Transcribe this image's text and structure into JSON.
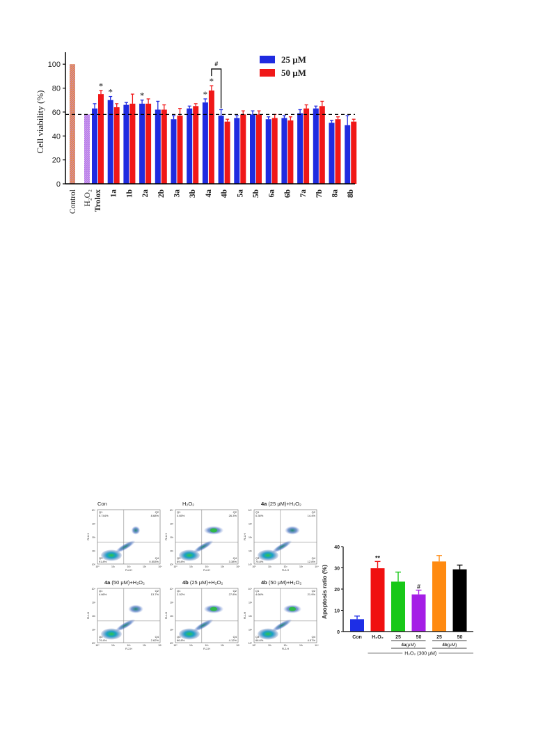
{
  "chart_data": [
    {
      "type": "bar",
      "ylabel": "Cell viability (%)",
      "ylim": [
        0,
        110
      ],
      "yticks": [
        0,
        20,
        40,
        60,
        80,
        100
      ],
      "reference_line": 58,
      "legend_position": "top-right",
      "single_bars": [
        {
          "label": "Control",
          "value": 100,
          "color": "#f08a2a",
          "pattern": "#c08ad8"
        },
        {
          "label": "H₂O₂",
          "value": 58,
          "color": "#b070e8",
          "pattern": "#d8b0f0"
        }
      ],
      "categories": [
        "Trolox",
        "1a",
        "1b",
        "2a",
        "2b",
        "3a",
        "3b",
        "4a",
        "4b",
        "5a",
        "5b",
        "6a",
        "6b",
        "7a",
        "7b",
        "8a",
        "8b"
      ],
      "series": [
        {
          "name": "25 μM",
          "color": "#1f2be0",
          "values": [
            63,
            70,
            66,
            67,
            62,
            54,
            63,
            68,
            57,
            55,
            58,
            54,
            55,
            59,
            63,
            51,
            49
          ],
          "errors": [
            4,
            3,
            2,
            3,
            7,
            3,
            2,
            3,
            5,
            2,
            3,
            2,
            2,
            3,
            2,
            2,
            8
          ]
        },
        {
          "name": "50 μM",
          "color": "#f01818",
          "values": [
            75,
            64,
            67,
            67,
            62,
            57,
            65,
            78,
            52,
            58,
            58,
            55,
            53,
            63,
            65,
            54,
            52
          ],
          "errors": [
            3,
            3,
            8,
            4,
            4,
            6,
            2,
            4,
            2,
            3,
            3,
            3,
            3,
            3,
            4,
            2,
            2
          ]
        }
      ],
      "significance_markers": [
        {
          "category": "Trolox",
          "series": 1,
          "text": "*"
        },
        {
          "category": "1a",
          "series": 0,
          "text": "*"
        },
        {
          "category": "2a",
          "series": 0,
          "text": "*"
        },
        {
          "category": "4a",
          "series": 0,
          "text": "*"
        },
        {
          "category": "4a",
          "series": 1,
          "text": "*"
        }
      ],
      "bracket": {
        "from": "4a",
        "to": "4b",
        "text": "#"
      }
    },
    {
      "type": "flow_cytometry",
      "panels": [
        {
          "title_bold": "",
          "title": "Con",
          "q1": "0.744%",
          "q2": "8.68%",
          "q3": "91.8%",
          "q4": "0.553%"
        },
        {
          "title_bold": "",
          "title": "H₂O₂",
          "q1": "0.65%",
          "q2": "26.3%",
          "q3": "69.8%",
          "q4": "3.38%"
        },
        {
          "title_bold": "4a",
          "title": " (25 μM)+H₂O₂",
          "q1": "0.30%",
          "q2": "14.4%",
          "q3": "75.8%",
          "q4": "12.8%"
        },
        {
          "title_bold": "4a",
          "title": " (50 μM)+H₂O₂",
          "q1": "4.66%",
          "q2": "13.7%",
          "q3": "79.4%",
          "q4": "2.62%"
        },
        {
          "title_bold": "4b",
          "title": " (25 μM)+H₂O₂",
          "q1": "2.02%",
          "q2": "27.8%",
          "q3": "66.8%",
          "q4": "4.12%"
        },
        {
          "title_bold": "4b",
          "title": " (50 μM)+H₂O₂",
          "q1": "4.66%",
          "q2": "21.9%",
          "q3": "68.6%",
          "q4": "4.57%"
        }
      ],
      "xlabel": "FL2-H",
      "ylabel": "FL1-H",
      "tick_labels": [
        "10⁰",
        "10¹",
        "10²",
        "10³",
        "10⁴"
      ]
    },
    {
      "type": "bar",
      "ylabel": "Apoptosis ratio (%)",
      "ylim": [
        0,
        40
      ],
      "yticks": [
        0,
        10,
        20,
        30,
        40
      ],
      "categories": [
        "Con",
        "H₂O₂",
        "25",
        "50",
        "25",
        "50"
      ],
      "values": [
        5.8,
        29.8,
        23.5,
        17.5,
        33,
        29.3
      ],
      "errors": [
        1.5,
        3.2,
        4.5,
        2.0,
        2.8,
        2.0
      ],
      "colors": [
        "#1d2ee6",
        "#f01010",
        "#18c818",
        "#a51ee6",
        "#ff8a10",
        "#000000"
      ],
      "markers": [
        {
          "index": 1,
          "text": "**"
        },
        {
          "index": 3,
          "text": "#"
        }
      ],
      "group_labels": [
        {
          "bold": "4a",
          "text": "(μM)",
          "from": 2,
          "to": 3
        },
        {
          "bold": "4b",
          "text": "(μM)",
          "from": 4,
          "to": 5
        }
      ],
      "xlabel": "H₂O₂ (300 μM)"
    }
  ]
}
